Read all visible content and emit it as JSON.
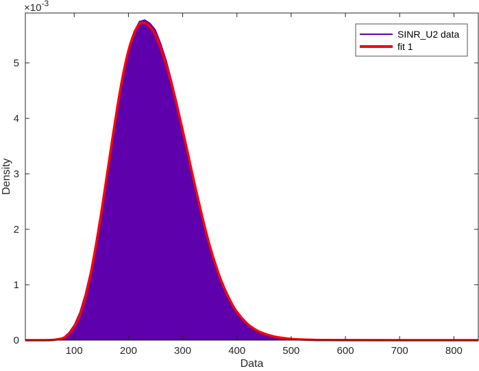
{
  "chart_data": {
    "type": "area",
    "title": "",
    "xlabel": "Data",
    "ylabel": "Density",
    "y_multiplier_label": "×10",
    "y_multiplier_exponent": "-3",
    "xlim": [
      10,
      845
    ],
    "ylim": [
      0,
      0.0059
    ],
    "x_ticks": [
      100,
      200,
      300,
      400,
      500,
      600,
      700,
      800
    ],
    "y_ticks": [
      0,
      0.001,
      0.002,
      0.003,
      0.004,
      0.005
    ],
    "y_tick_labels": [
      "0",
      "1",
      "2",
      "3",
      "4",
      "5"
    ],
    "legend_position": "top-right",
    "series": [
      {
        "name": "SINR_U2 data",
        "kind": "histogram",
        "color": "#5e00ab",
        "x": [
          10,
          40,
          60,
          80,
          90,
          100,
          110,
          120,
          130,
          140,
          150,
          160,
          170,
          180,
          190,
          200,
          210,
          220,
          230,
          240,
          250,
          260,
          270,
          280,
          290,
          300,
          310,
          320,
          330,
          340,
          350,
          360,
          370,
          380,
          390,
          400,
          420,
          440,
          460,
          480,
          500,
          520,
          540,
          560,
          600,
          700,
          845
        ],
        "values": [
          0,
          0,
          5e-06,
          5e-05,
          0.00014,
          0.00028,
          0.0005,
          0.00083,
          0.00125,
          0.00178,
          0.00235,
          0.00298,
          0.0036,
          0.00425,
          0.0048,
          0.00525,
          0.00557,
          0.00575,
          0.00578,
          0.00572,
          0.0056,
          0.00535,
          0.00505,
          0.00468,
          0.00428,
          0.00385,
          0.0034,
          0.00295,
          0.0025,
          0.00208,
          0.00172,
          0.0014,
          0.00112,
          0.00088,
          0.00068,
          0.00052,
          0.0003,
          0.00017,
          9.2e-05,
          4.8e-05,
          2.5e-05,
          1.2e-05,
          6e-06,
          3e-06,
          1e-06,
          0,
          0
        ]
      },
      {
        "name": "fit 1",
        "kind": "line",
        "color": "#ff0000",
        "x": [
          10,
          40,
          60,
          80,
          90,
          100,
          110,
          120,
          130,
          140,
          150,
          160,
          170,
          180,
          190,
          200,
          210,
          220,
          230,
          240,
          250,
          260,
          270,
          280,
          290,
          300,
          310,
          320,
          330,
          340,
          350,
          360,
          370,
          380,
          390,
          400,
          420,
          440,
          460,
          480,
          500,
          520,
          540,
          560,
          600,
          700,
          845
        ],
        "values": [
          0,
          0,
          4e-06,
          4e-05,
          0.00011,
          0.00024,
          0.00044,
          0.00075,
          0.00117,
          0.0017,
          0.0023,
          0.00295,
          0.0036,
          0.00423,
          0.00478,
          0.00522,
          0.00552,
          0.0057,
          0.00572,
          0.00565,
          0.0055,
          0.00525,
          0.00495,
          0.0046,
          0.0042,
          0.00378,
          0.00335,
          0.0029,
          0.00248,
          0.00207,
          0.0017,
          0.00138,
          0.0011,
          0.00087,
          0.00067,
          0.00051,
          0.00029,
          0.00016,
          8.8e-05,
          4.6e-05,
          2.4e-05,
          1.2e-05,
          6e-06,
          3e-06,
          1e-06,
          0,
          0
        ]
      }
    ]
  }
}
